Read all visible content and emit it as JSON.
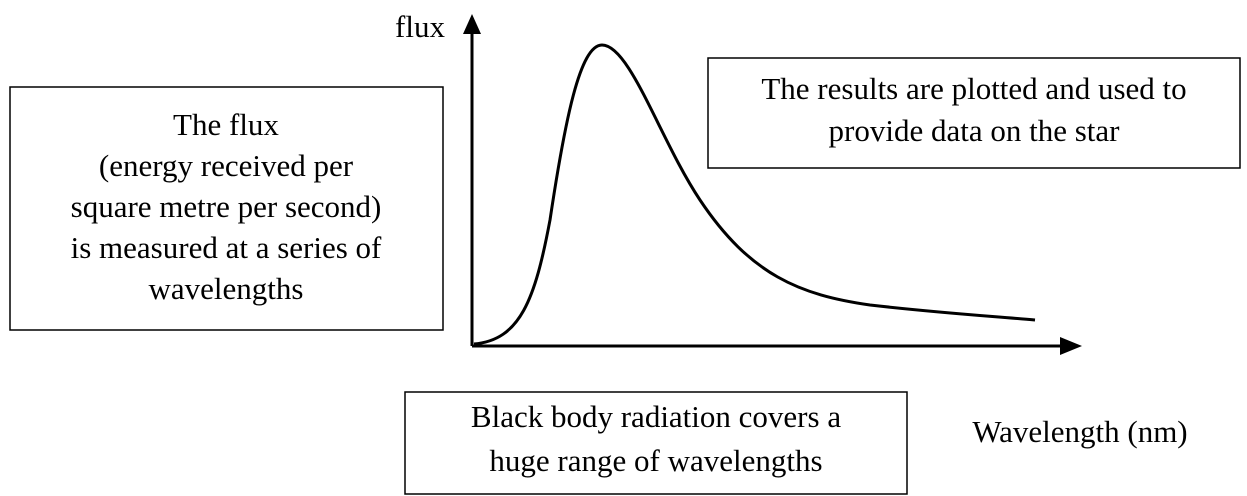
{
  "axes": {
    "y_label": "flux",
    "x_label": "Wavelength (nm)"
  },
  "boxes": [
    {
      "lines": [
        "The flux",
        "(energy received per",
        "square metre per second)",
        "is measured at a series of",
        "wavelengths"
      ]
    },
    {
      "lines": [
        "The results are plotted and used to",
        "provide data on the star"
      ]
    },
    {
      "lines": [
        "Black body radiation covers a",
        "huge range of wavelengths"
      ]
    }
  ]
}
